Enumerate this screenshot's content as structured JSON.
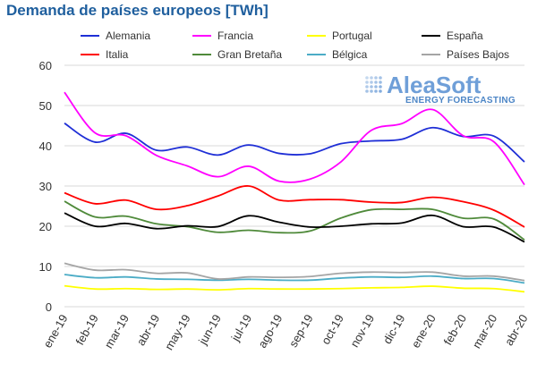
{
  "chart_data": {
    "type": "line",
    "title": "Demanda de países europeos [TWh]",
    "categories": [
      "ene-19",
      "feb-19",
      "mar-19",
      "abr-19",
      "may-19",
      "jun-19",
      "jul-19",
      "ago-19",
      "sep-19",
      "oct-19",
      "nov-19",
      "dic-19",
      "ene-20",
      "feb-20",
      "mar-20",
      "abr-20"
    ],
    "ylim": [
      0,
      60
    ],
    "yticks": [
      0,
      10,
      20,
      30,
      40,
      50,
      60
    ],
    "grid": true,
    "legend": "top",
    "series": [
      {
        "name": "Alemania",
        "color": "#1f2fd6",
        "values": [
          45.6,
          40.9,
          43.1,
          38.9,
          39.7,
          37.7,
          40.2,
          38.1,
          38.0,
          40.5,
          41.2,
          41.6,
          44.5,
          42.3,
          42.4,
          36.0
        ]
      },
      {
        "name": "Francia",
        "color": "#ff00ff",
        "values": [
          53.3,
          43.2,
          42.5,
          37.6,
          35.0,
          32.3,
          34.9,
          31.2,
          31.7,
          35.9,
          43.8,
          45.5,
          49.0,
          42.5,
          41.0,
          30.3
        ]
      },
      {
        "name": "Portugal",
        "color": "#ffff00",
        "values": [
          5.2,
          4.4,
          4.5,
          4.3,
          4.4,
          4.2,
          4.5,
          4.4,
          4.4,
          4.5,
          4.7,
          4.8,
          5.1,
          4.6,
          4.5,
          3.7
        ]
      },
      {
        "name": "España",
        "color": "#000000",
        "values": [
          23.3,
          20.0,
          20.7,
          19.4,
          20.1,
          19.9,
          22.6,
          21.0,
          19.8,
          20.0,
          20.6,
          20.8,
          22.7,
          19.9,
          19.8,
          16.1
        ]
      },
      {
        "name": "Italia",
        "color": "#ff0000",
        "values": [
          28.3,
          25.6,
          26.5,
          24.2,
          25.1,
          27.5,
          30.0,
          26.5,
          26.6,
          26.6,
          26.0,
          25.9,
          27.2,
          26.1,
          24.0,
          19.8
        ]
      },
      {
        "name": "Gran Bretaña",
        "color": "#4f8a3a",
        "values": [
          26.2,
          22.3,
          22.5,
          20.6,
          19.9,
          18.5,
          19.0,
          18.4,
          18.8,
          22.0,
          24.1,
          24.2,
          24.2,
          22.0,
          21.8,
          16.6
        ]
      },
      {
        "name": "Bélgica",
        "color": "#4bacc6",
        "values": [
          8.0,
          7.2,
          7.4,
          6.9,
          6.8,
          6.6,
          6.8,
          6.6,
          6.6,
          7.1,
          7.4,
          7.3,
          7.6,
          7.0,
          7.0,
          5.9
        ]
      },
      {
        "name": "Países Bajos",
        "color": "#a5a5a5",
        "values": [
          10.8,
          9.1,
          9.2,
          8.3,
          8.4,
          6.9,
          7.4,
          7.3,
          7.5,
          8.3,
          8.6,
          8.5,
          8.6,
          7.6,
          7.6,
          6.5
        ]
      }
    ]
  },
  "logo": {
    "name": "AleaSoft",
    "tagline": "ENERGY FORECASTING",
    "color_main": "#6f9fd8",
    "color_tagline": "#4d86c6"
  }
}
